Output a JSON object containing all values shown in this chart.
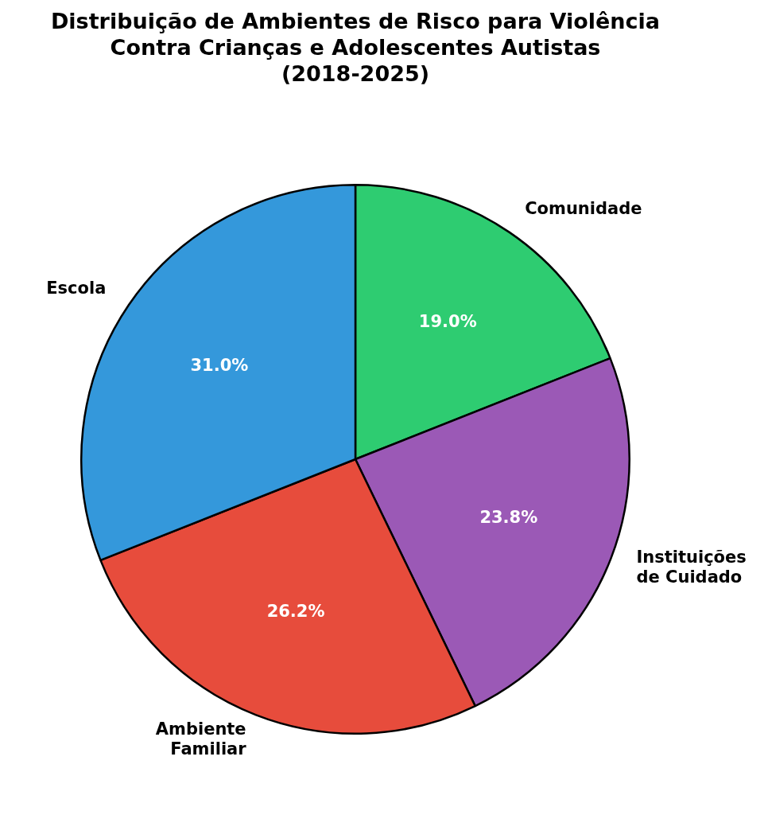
{
  "chart_data": {
    "type": "pie",
    "title": "Distribuição de Ambientes de Risco para Violência\nContra Crianças e Adolescentes Autistas\n(2018-2025)",
    "categories": [
      "Comunidade",
      "Instituições\nde Cuidado",
      "Ambiente\nFamiliar",
      "Escola"
    ],
    "values": [
      19.0,
      23.8,
      26.2,
      31.0
    ],
    "colors": [
      "#2ecc71",
      "#9b59b6",
      "#e74c3c",
      "#3498db"
    ],
    "value_labels": [
      "19.0%",
      "23.8%",
      "26.2%",
      "31.0%"
    ],
    "legend": false
  }
}
